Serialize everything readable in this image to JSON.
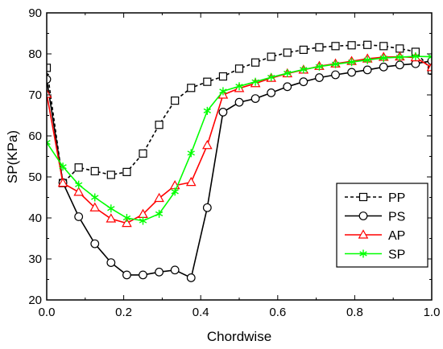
{
  "chart_data": {
    "type": "line",
    "xlabel": "Chordwise",
    "ylabel": "SP(KPa)",
    "xlim": [
      0,
      1.0
    ],
    "ylim": [
      20,
      90
    ],
    "x_ticks": [
      0.0,
      0.2,
      0.4,
      0.6,
      0.8,
      1.0
    ],
    "x_tick_labels": [
      "0.0",
      "0.2",
      "0.4",
      "0.6",
      "0.8",
      "1.0"
    ],
    "y_ticks": [
      20,
      30,
      40,
      50,
      60,
      70,
      80,
      90
    ],
    "y_tick_labels": [
      "20",
      "30",
      "40",
      "50",
      "60",
      "70",
      "80",
      "90"
    ],
    "grid": false,
    "legend_position": "bottom-right",
    "series": [
      {
        "name": "PP",
        "color": "#000000",
        "marker": "square",
        "dash": "dashed",
        "x": [
          0.0,
          0.042,
          0.083,
          0.125,
          0.167,
          0.208,
          0.25,
          0.292,
          0.333,
          0.375,
          0.417,
          0.458,
          0.5,
          0.542,
          0.583,
          0.625,
          0.667,
          0.708,
          0.75,
          0.792,
          0.833,
          0.875,
          0.917,
          0.958,
          1.0
        ],
        "y": [
          76.6,
          48.5,
          52.3,
          51.4,
          50.5,
          51.2,
          55.7,
          62.7,
          68.6,
          71.7,
          73.2,
          74.5,
          76.4,
          77.9,
          79.3,
          80.3,
          81.0,
          81.6,
          81.9,
          82.1,
          82.2,
          81.9,
          81.3,
          80.5,
          76.0
        ]
      },
      {
        "name": "PS",
        "color": "#000000",
        "marker": "circle",
        "dash": "solid",
        "x": [
          0.0,
          0.042,
          0.083,
          0.125,
          0.167,
          0.208,
          0.25,
          0.292,
          0.333,
          0.375,
          0.417,
          0.458,
          0.5,
          0.542,
          0.583,
          0.625,
          0.667,
          0.708,
          0.75,
          0.792,
          0.833,
          0.875,
          0.917,
          0.958,
          1.0
        ],
        "y": [
          73.8,
          48.6,
          40.3,
          33.7,
          29.1,
          26.1,
          26.1,
          26.8,
          27.3,
          25.4,
          42.5,
          65.8,
          68.2,
          69.1,
          70.5,
          72.0,
          73.2,
          74.2,
          74.9,
          75.5,
          76.1,
          76.8,
          77.3,
          77.6,
          78.3
        ]
      },
      {
        "name": "AP",
        "color": "#ff0000",
        "marker": "triangle",
        "dash": "solid",
        "x": [
          0.0,
          0.042,
          0.083,
          0.125,
          0.167,
          0.208,
          0.25,
          0.292,
          0.333,
          0.375,
          0.417,
          0.458,
          0.5,
          0.542,
          0.583,
          0.625,
          0.667,
          0.708,
          0.75,
          0.792,
          0.833,
          0.875,
          0.917,
          0.958,
          1.0
        ],
        "y": [
          70.2,
          48.5,
          46.3,
          42.5,
          39.8,
          38.7,
          40.9,
          44.8,
          47.9,
          48.7,
          57.7,
          70.0,
          71.6,
          72.8,
          74.1,
          75.2,
          76.1,
          77.0,
          77.6,
          78.2,
          78.8,
          79.2,
          79.3,
          79.1,
          76.7
        ]
      },
      {
        "name": "SP",
        "color": "#00ff00",
        "marker": "asterisk",
        "dash": "solid",
        "x": [
          0.0,
          0.042,
          0.083,
          0.125,
          0.167,
          0.208,
          0.25,
          0.292,
          0.333,
          0.375,
          0.417,
          0.458,
          0.5,
          0.542,
          0.583,
          0.625,
          0.667,
          0.708,
          0.75,
          0.792,
          0.833,
          0.875,
          0.917,
          0.958,
          1.0
        ],
        "y": [
          58.4,
          52.5,
          48.1,
          45.0,
          42.3,
          40.0,
          39.3,
          41.0,
          46.4,
          55.8,
          66.1,
          70.9,
          72.1,
          73.2,
          74.3,
          75.3,
          76.2,
          76.9,
          77.5,
          78.0,
          78.5,
          79.0,
          79.2,
          79.4,
          79.3
        ]
      }
    ]
  }
}
